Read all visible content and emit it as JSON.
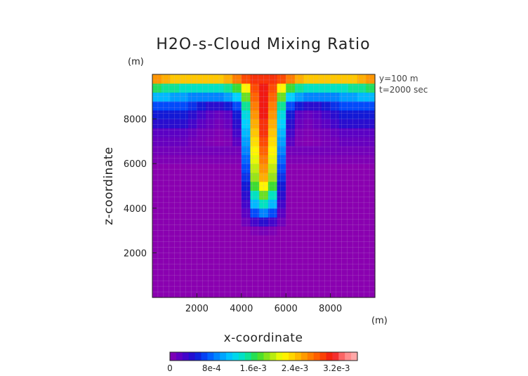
{
  "chart_data": {
    "type": "heatmap",
    "title": "H2O-s-Cloud Mixing Ratio",
    "xlabel": "x-coordinate",
    "ylabel": "z-coordinate",
    "x_unit": "(m)",
    "y_unit": "(m)",
    "info_lines": [
      "y=100 m",
      "t=2000 sec"
    ],
    "xlim": [
      0,
      10000
    ],
    "ylim": [
      0,
      10000
    ],
    "x_ticks": [
      2000,
      4000,
      6000,
      8000
    ],
    "y_ticks": [
      2000,
      4000,
      6000,
      8000
    ],
    "x_tick_labels": [
      "2000",
      "4000",
      "6000",
      "8000"
    ],
    "y_tick_labels": [
      "2000",
      "4000",
      "6000",
      "8000"
    ],
    "colorbar": {
      "range": [
        0,
        0.0036
      ],
      "ticks": [
        0,
        0.0008,
        0.0016,
        0.0024,
        0.0032
      ],
      "tick_labels": [
        "0",
        "8e-4",
        "1.6e-3",
        "2.4e-3",
        "3.2e-3"
      ],
      "levels": 30
    },
    "field": {
      "x_centers": [
        200,
        600,
        1000,
        1400,
        1800,
        2200,
        2600,
        3000,
        3400,
        3800,
        4200,
        4600,
        5000,
        5400,
        5800,
        6200,
        6600,
        7000,
        7400,
        7800,
        8200,
        8600,
        9000,
        9400,
        9800
      ],
      "z_centers": [
        200,
        600,
        1000,
        1400,
        1800,
        2200,
        2600,
        3000,
        3400,
        3800,
        4200,
        4600,
        5000,
        5400,
        5800,
        6200,
        6600,
        7000,
        7400,
        7800,
        8200,
        8600,
        9000,
        9400,
        9800
      ],
      "values_approx": [
        [
          0,
          0,
          0,
          0,
          0,
          0,
          0,
          0,
          0,
          0,
          0,
          0,
          0,
          0,
          0,
          0,
          0,
          0,
          0,
          0,
          0,
          0,
          0,
          0,
          0
        ],
        [
          0,
          0,
          0,
          0,
          0,
          0,
          0,
          0,
          0,
          0,
          0,
          0,
          0,
          0,
          0,
          0,
          0,
          0,
          0,
          0,
          0,
          0,
          0,
          0,
          0
        ],
        [
          0,
          0,
          0,
          0,
          0,
          0,
          0,
          0,
          0,
          0,
          0,
          0,
          0,
          0,
          0,
          0,
          0,
          0,
          0,
          0,
          0,
          0,
          0,
          0,
          0
        ],
        [
          0,
          0,
          0,
          0,
          0,
          0,
          0,
          0,
          0,
          0,
          0,
          0,
          0,
          0,
          0,
          0,
          0,
          0,
          0,
          0,
          0,
          0,
          0,
          0,
          0
        ],
        [
          0,
          0,
          0,
          0,
          0,
          0,
          0,
          0,
          0,
          0,
          0,
          0,
          0,
          0,
          0,
          0,
          0,
          0,
          0,
          0,
          0,
          0,
          0,
          0,
          0
        ],
        [
          0,
          0,
          0,
          0,
          0,
          0,
          0,
          0,
          0,
          0,
          0,
          0,
          0,
          0,
          0,
          0,
          0,
          0,
          0,
          0,
          0,
          0,
          0,
          0,
          0
        ],
        [
          0,
          0,
          0,
          0,
          0,
          0,
          0,
          0,
          0,
          0,
          0,
          0,
          0,
          0,
          0,
          0,
          0,
          0,
          0,
          0,
          0,
          0,
          0,
          0,
          0
        ],
        [
          0,
          0,
          0,
          0,
          0,
          0,
          0,
          0,
          0,
          0,
          0,
          5e-05,
          8e-05,
          5e-05,
          0,
          0,
          0,
          0,
          0,
          0,
          0,
          0,
          0,
          0,
          0
        ],
        [
          0,
          0,
          0,
          0,
          0,
          0,
          0,
          0,
          0,
          0,
          0.00012,
          0.0003,
          0.0004,
          0.0003,
          0.00012,
          0,
          0,
          0,
          0,
          0,
          0,
          0,
          0,
          0,
          0
        ],
        [
          0,
          0,
          0,
          0,
          0,
          0,
          0,
          0,
          0,
          0,
          0.0002,
          0.0007,
          0.0009,
          0.0007,
          0.0002,
          0,
          0,
          0,
          0,
          0,
          0,
          0,
          0,
          0,
          0
        ],
        [
          0,
          0,
          0,
          0,
          0,
          0,
          0,
          0,
          0,
          0,
          0.0003,
          0.0011,
          0.0014,
          0.0011,
          0.0003,
          0,
          0,
          0,
          0,
          0,
          0,
          0,
          0,
          0,
          0
        ],
        [
          0,
          0,
          0,
          0,
          0,
          0,
          0,
          0,
          0,
          0,
          0.0004,
          0.0014,
          0.0018,
          0.0014,
          0.0004,
          0,
          0,
          0,
          0,
          0,
          0,
          0,
          0,
          0,
          0
        ],
        [
          0,
          0,
          0,
          0,
          0,
          0,
          0,
          0,
          0,
          0,
          0.0005,
          0.0017,
          0.0022,
          0.0017,
          0.0005,
          0,
          0,
          0,
          0,
          0,
          0,
          0,
          0,
          0,
          0
        ],
        [
          0,
          0,
          0,
          0,
          0,
          0,
          0,
          0,
          0,
          0,
          0.0006,
          0.0019,
          0.0025,
          0.0019,
          0.0006,
          0,
          0,
          0,
          0,
          0,
          0,
          0,
          0,
          0,
          0
        ],
        [
          0,
          0,
          0,
          0,
          0,
          0,
          0,
          0,
          0,
          0,
          0.0007,
          0.002,
          0.0026,
          0.002,
          0.0007,
          0,
          0,
          0,
          0,
          0,
          0,
          0,
          0,
          0,
          0
        ],
        [
          5e-05,
          5e-05,
          5e-05,
          5e-05,
          5e-05,
          5e-05,
          5e-05,
          5e-05,
          5e-05,
          5e-05,
          0.0008,
          0.0021,
          0.0027,
          0.0021,
          0.0008,
          5e-05,
          5e-05,
          5e-05,
          5e-05,
          5e-05,
          5e-05,
          5e-05,
          5e-05,
          5e-05,
          5e-05
        ],
        [
          0.0001,
          0.0001,
          0.0001,
          0.0001,
          0.0001,
          0.0001,
          0.0001,
          0.0001,
          0.0001,
          0.0001,
          0.0009,
          0.0022,
          0.0028,
          0.0022,
          0.0009,
          0.0001,
          0.0001,
          0.0001,
          0.0001,
          0.0001,
          0.0001,
          0.0001,
          0.0001,
          0.0001,
          0.0001
        ],
        [
          0.00015,
          0.00015,
          0.00015,
          0.00015,
          0.0001,
          8e-05,
          5e-05,
          3e-05,
          5e-05,
          0.0002,
          0.001,
          0.0023,
          0.0029,
          0.0023,
          0.001,
          0.0002,
          5e-05,
          3e-05,
          5e-05,
          8e-05,
          0.0001,
          0.00015,
          0.00015,
          0.00015,
          0.00015
        ],
        [
          0.0002,
          0.0002,
          0.0002,
          0.0002,
          0.00015,
          0.0001,
          8e-05,
          5e-05,
          8e-05,
          0.0003,
          0.0011,
          0.0024,
          0.003,
          0.0024,
          0.0011,
          0.0003,
          8e-05,
          5e-05,
          8e-05,
          0.0001,
          0.00015,
          0.0002,
          0.0002,
          0.0002,
          0.0002
        ],
        [
          0.0004,
          0.0004,
          0.0004,
          0.0004,
          0.0003,
          0.0002,
          0.00015,
          0.0001,
          0.00015,
          0.0004,
          0.0012,
          0.0025,
          0.003,
          0.0025,
          0.0012,
          0.0004,
          0.00015,
          0.0001,
          0.00015,
          0.0002,
          0.0003,
          0.0004,
          0.0004,
          0.0004,
          0.0004
        ],
        [
          0.0005,
          0.0005,
          0.0005,
          0.0005,
          0.0004,
          0.0003,
          0.0002,
          0.00015,
          0.0002,
          0.0005,
          0.0013,
          0.0026,
          0.0031,
          0.0026,
          0.0013,
          0.0005,
          0.0002,
          0.00015,
          0.0002,
          0.0003,
          0.0004,
          0.0005,
          0.0005,
          0.0005,
          0.0005
        ],
        [
          0.0007,
          0.0007,
          0.0007,
          0.0007,
          0.0006,
          0.0005,
          0.0004,
          0.0004,
          0.0005,
          0.0007,
          0.0015,
          0.0027,
          0.0031,
          0.0027,
          0.0015,
          0.0007,
          0.0005,
          0.0004,
          0.0004,
          0.0005,
          0.0006,
          0.0007,
          0.0007,
          0.0007,
          0.0007
        ],
        [
          0.0011,
          0.0011,
          0.001,
          0.001,
          0.0009,
          0.0009,
          0.0009,
          0.0009,
          0.001,
          0.0012,
          0.0018,
          0.0028,
          0.0031,
          0.0028,
          0.0018,
          0.0012,
          0.001,
          0.0009,
          0.0009,
          0.0009,
          0.0009,
          0.001,
          0.001,
          0.0011,
          0.0011
        ],
        [
          0.0016,
          0.0015,
          0.0015,
          0.0014,
          0.0014,
          0.0014,
          0.0014,
          0.0014,
          0.0015,
          0.0017,
          0.0022,
          0.0029,
          0.0031,
          0.0029,
          0.0022,
          0.0017,
          0.0015,
          0.0014,
          0.0014,
          0.0014,
          0.0014,
          0.0014,
          0.0015,
          0.0015,
          0.0016
        ],
        [
          0.0026,
          0.0025,
          0.0024,
          0.0024,
          0.0024,
          0.0024,
          0.0024,
          0.0024,
          0.0025,
          0.0027,
          0.0029,
          0.003,
          0.003,
          0.003,
          0.0029,
          0.0027,
          0.0025,
          0.0024,
          0.0024,
          0.0024,
          0.0024,
          0.0024,
          0.0024,
          0.0025,
          0.0026
        ]
      ]
    },
    "colors": {
      "scale": [
        "#8a00b0",
        "#5200c8",
        "#1414d2",
        "#0050ff",
        "#0096ff",
        "#00d2ff",
        "#00e6b4",
        "#32dc32",
        "#a0e614",
        "#ffff00",
        "#ffc800",
        "#ff8c00",
        "#ff5000",
        "#f01414",
        "#ff8080",
        "#ffb4b4"
      ],
      "grid_line": "#c8a8d8",
      "axis": "#222222"
    }
  }
}
